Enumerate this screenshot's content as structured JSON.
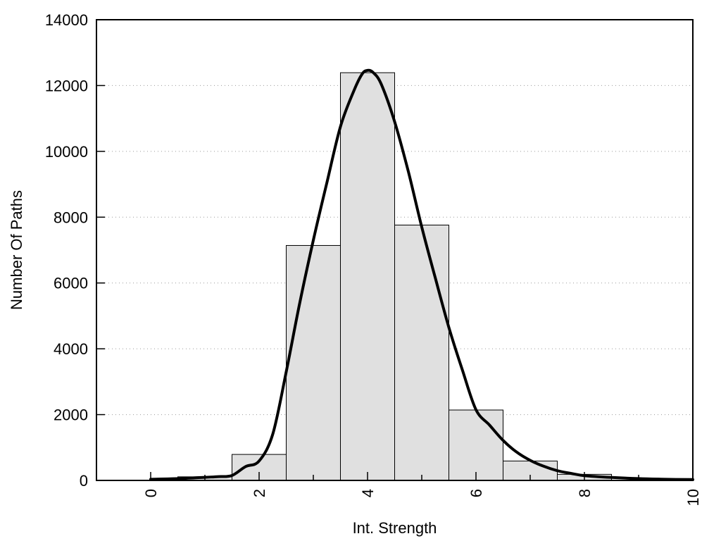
{
  "figure": {
    "background_color": "#ffffff",
    "xlabel": "Int. Strength",
    "ylabel": "Number Of Paths"
  },
  "chart_data": {
    "type": "bar",
    "subtype": "histogram-with-fit-curve",
    "title": "",
    "xlabel": "Int. Strength",
    "ylabel": "Number Of Paths",
    "xlim": [
      -1,
      10
    ],
    "ylim": [
      0,
      14000
    ],
    "grid": "horizontal-dotted",
    "legend": "none",
    "x_major_ticks": [
      0,
      2,
      4,
      6,
      8,
      10
    ],
    "x_major_tick_labels": [
      "0",
      "2",
      "4",
      "6",
      "8",
      "10"
    ],
    "x_minor_ticks": [
      1,
      3,
      5,
      7,
      9
    ],
    "x_tick_label_rotation_deg": -90,
    "y_ticks": [
      0,
      2000,
      4000,
      6000,
      8000,
      10000,
      12000,
      14000
    ],
    "y_tick_labels": [
      "0",
      "2000",
      "4000",
      "6000",
      "8000",
      "10000",
      "12000",
      "14000"
    ],
    "grid_y_values": [
      2000,
      4000,
      6000,
      8000,
      10000,
      12000
    ],
    "bar_fill_color": "#e0e0e0",
    "bar_edge_color": "#000000",
    "curve_color": "#000000",
    "axis_color": "#000000",
    "grid_color": "#9a9a9a",
    "bins": [
      {
        "x0": 0.5,
        "x1": 1.5,
        "count": 110
      },
      {
        "x0": 1.5,
        "x1": 2.5,
        "count": 790
      },
      {
        "x0": 2.5,
        "x1": 3.5,
        "count": 7140
      },
      {
        "x0": 3.5,
        "x1": 4.5,
        "count": 12390
      },
      {
        "x0": 4.5,
        "x1": 5.5,
        "count": 7760
      },
      {
        "x0": 5.5,
        "x1": 6.5,
        "count": 2140
      },
      {
        "x0": 6.5,
        "x1": 7.5,
        "count": 590
      },
      {
        "x0": 7.5,
        "x1": 8.5,
        "count": 185
      }
    ],
    "fit_curve": {
      "peak_x": 4.0,
      "peak_y": 12460,
      "x": [
        0,
        0.5,
        1,
        1.25,
        1.5,
        1.75,
        2,
        2.25,
        2.5,
        2.75,
        3,
        3.25,
        3.5,
        3.75,
        3.9,
        4,
        4.1,
        4.25,
        4.5,
        4.75,
        5,
        5.25,
        5.5,
        5.75,
        6,
        6.25,
        6.5,
        6.75,
        7,
        7.25,
        7.5,
        7.75,
        8,
        8.5,
        9,
        9.5,
        10
      ],
      "y": [
        35,
        55,
        95,
        115,
        150,
        420,
        590,
        1400,
        3300,
        5400,
        7300,
        9050,
        10750,
        11850,
        12350,
        12460,
        12400,
        12050,
        10900,
        9400,
        7700,
        6150,
        4650,
        3350,
        2150,
        1680,
        1215,
        860,
        610,
        430,
        295,
        215,
        145,
        90,
        55,
        35,
        25
      ]
    }
  }
}
